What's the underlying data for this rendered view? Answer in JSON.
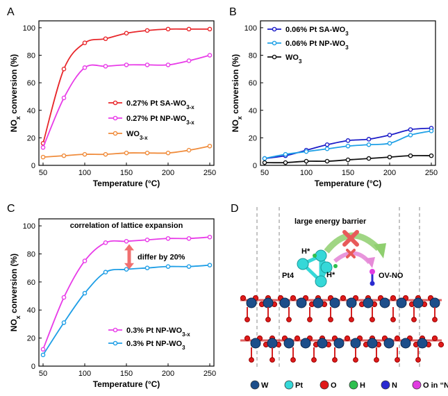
{
  "panels": {
    "a": {
      "letter": "A"
    },
    "b": {
      "letter": "B"
    },
    "c": {
      "letter": "C"
    },
    "d": {
      "letter": "D"
    }
  },
  "chart_data": [
    {
      "id": "a",
      "type": "line",
      "xlabel": "Temperature (°C)",
      "ylabel": "NOx conversion (%)",
      "xlim": [
        45,
        255
      ],
      "ylim": [
        0,
        105
      ],
      "xticks": [
        50,
        100,
        150,
        200,
        250
      ],
      "yticks": [
        0,
        20,
        40,
        60,
        80,
        100
      ],
      "legend_position": "center-right",
      "series": [
        {
          "name": "0.27% Pt SA-WO3-x",
          "color": "#e8262a",
          "x": [
            50,
            75,
            100,
            125,
            150,
            175,
            200,
            225,
            250
          ],
          "values": [
            16,
            70,
            89,
            92,
            96,
            98,
            99,
            99,
            99
          ]
        },
        {
          "name": "0.27% Pt NP-WO3-x",
          "color": "#e83be8",
          "x": [
            50,
            75,
            100,
            125,
            150,
            175,
            200,
            225,
            250
          ],
          "values": [
            13,
            49,
            71,
            72,
            73,
            73,
            73,
            76,
            80
          ]
        },
        {
          "name": "WO3-x",
          "color": "#f08c3c",
          "x": [
            50,
            75,
            100,
            125,
            150,
            175,
            200,
            225,
            250
          ],
          "values": [
            6,
            7,
            8,
            8,
            9,
            9,
            9,
            11,
            14
          ]
        }
      ]
    },
    {
      "id": "b",
      "type": "line",
      "xlabel": "Temperature (°C)",
      "ylabel": "NOx conversion (%)",
      "xlim": [
        45,
        255
      ],
      "ylim": [
        0,
        105
      ],
      "xticks": [
        50,
        100,
        150,
        200,
        250
      ],
      "yticks": [
        0,
        20,
        40,
        60,
        80,
        100
      ],
      "legend_position": "top-left",
      "series": [
        {
          "name": "0.06% Pt SA-WO3",
          "color": "#1c1cc8",
          "x": [
            50,
            75,
            100,
            125,
            150,
            175,
            200,
            225,
            250
          ],
          "values": [
            5,
            7,
            11,
            15,
            18,
            19,
            22,
            26,
            27
          ]
        },
        {
          "name": "0.06% Pt NP-WO3",
          "color": "#1ea0e6",
          "x": [
            50,
            75,
            100,
            125,
            150,
            175,
            200,
            225,
            250
          ],
          "values": [
            5,
            8,
            10,
            12,
            14,
            15,
            16,
            22,
            25
          ]
        },
        {
          "name": "WO3",
          "color": "#111111",
          "x": [
            50,
            75,
            100,
            125,
            150,
            175,
            200,
            225,
            250
          ],
          "values": [
            2,
            2,
            3,
            3,
            4,
            5,
            6,
            7,
            7
          ]
        }
      ]
    },
    {
      "id": "c",
      "type": "line",
      "xlabel": "Temperature (°C)",
      "ylabel": "NOx conversion (%)",
      "xlim": [
        45,
        255
      ],
      "ylim": [
        0,
        105
      ],
      "xticks": [
        50,
        100,
        150,
        200,
        250
      ],
      "yticks": [
        0,
        20,
        40,
        60,
        80,
        100
      ],
      "legend_position": "bottom-right",
      "annotations": {
        "title": "correlation of lattice expansion",
        "arrow_label": "differ by 20%"
      },
      "series": [
        {
          "name": "0.3% Pt NP-WO3-x",
          "color": "#e83be8",
          "x": [
            50,
            75,
            100,
            125,
            150,
            175,
            200,
            225,
            250
          ],
          "values": [
            12,
            49,
            75,
            88,
            89,
            90,
            91,
            91,
            92
          ]
        },
        {
          "name": "0.3% Pt NP-WO3",
          "color": "#1e9ee6",
          "x": [
            50,
            75,
            100,
            125,
            150,
            175,
            200,
            225,
            250
          ],
          "values": [
            8,
            31,
            52,
            67,
            69,
            70,
            71,
            71,
            72
          ]
        }
      ]
    }
  ],
  "schematic": {
    "title": "large energy barrier",
    "labels": {
      "h_left": "H*",
      "h_right": "H*",
      "pt4": "Pt4",
      "ov_no": "OV-NO"
    },
    "legend": [
      {
        "label": "W",
        "color": "#1d4e8a"
      },
      {
        "label": "Pt",
        "color": "#35d8d8"
      },
      {
        "label": "O",
        "color": "#e01a1a"
      },
      {
        "label": "H",
        "color": "#2fbf4f"
      },
      {
        "label": "N",
        "color": "#2a2ad0"
      },
      {
        "label": "O in “NO”",
        "color": "#e03ce0"
      }
    ]
  }
}
